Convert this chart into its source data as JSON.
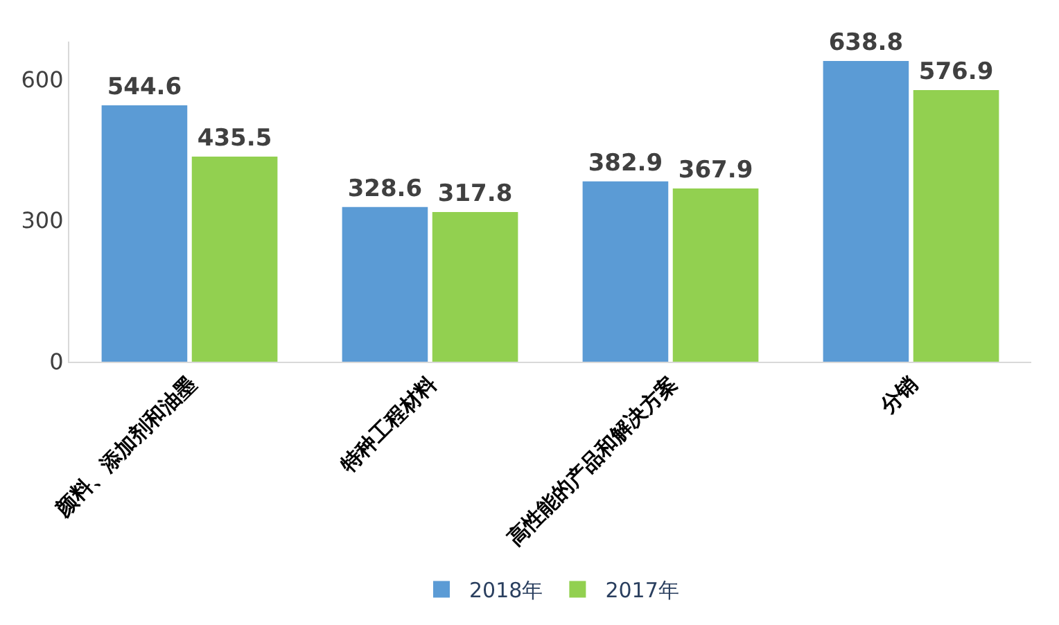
{
  "chart_data": {
    "type": "bar",
    "categories": [
      "颜料、添加剂和油墨",
      "特种工程材料",
      "高性能的产品和解决方案",
      "分销"
    ],
    "series": [
      {
        "name": "2018年",
        "color": "#5b9bd5",
        "values": [
          544.6,
          328.6,
          382.9,
          638.8
        ]
      },
      {
        "name": "2017年",
        "color": "#92d050",
        "values": [
          435.5,
          317.8,
          367.9,
          576.9
        ]
      }
    ],
    "ylim": [
      0,
      680
    ],
    "yticks": [
      0,
      300,
      600
    ],
    "legend": "bottom",
    "data_labels": true
  }
}
